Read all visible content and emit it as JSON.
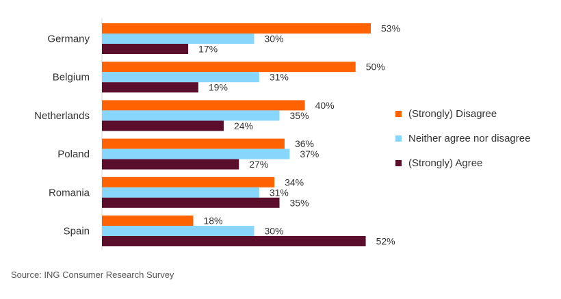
{
  "chart_data": {
    "type": "bar",
    "orientation": "horizontal",
    "categories": [
      "Germany",
      "Belgium",
      "Netherlands",
      "Poland",
      "Romania",
      "Spain"
    ],
    "series": [
      {
        "name": "(Strongly) Disagree",
        "color": "#ff6200",
        "values": [
          53,
          50,
          40,
          36,
          34,
          18
        ]
      },
      {
        "name": "Neither agree nor disagree",
        "color": "#89d6fd",
        "values": [
          30,
          31,
          35,
          37,
          31,
          30
        ]
      },
      {
        "name": "(Strongly) Agree",
        "color": "#5a0e2c",
        "values": [
          17,
          19,
          24,
          27,
          35,
          52
        ]
      }
    ],
    "value_suffix": "%",
    "xlim": [
      0,
      60
    ],
    "grid": false,
    "legend_position": "right"
  },
  "source": "Source: ING Consumer Research Survey"
}
